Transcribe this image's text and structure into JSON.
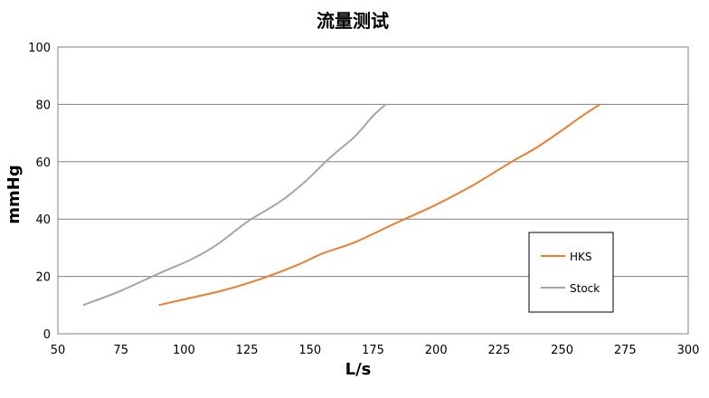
{
  "chart_data": {
    "type": "line",
    "title": "流量测试",
    "xlabel": "L/s",
    "ylabel": "mmHg",
    "xlim": [
      50,
      300
    ],
    "ylim": [
      0,
      100
    ],
    "x_ticks": [
      50,
      75,
      100,
      125,
      150,
      175,
      200,
      225,
      250,
      275,
      300
    ],
    "y_ticks": [
      0,
      20,
      40,
      60,
      80,
      100
    ],
    "grid": "horizontal",
    "legend_position": "right",
    "series": [
      {
        "name": "HKS",
        "color": "#ED7D31",
        "points": [
          [
            90,
            10
          ],
          [
            100,
            12
          ],
          [
            115,
            15
          ],
          [
            130,
            19
          ],
          [
            145,
            24
          ],
          [
            155,
            28
          ],
          [
            168,
            32
          ],
          [
            185,
            39
          ],
          [
            200,
            45
          ],
          [
            215,
            52
          ],
          [
            230,
            60
          ],
          [
            240,
            65
          ],
          [
            250,
            71
          ],
          [
            258,
            76
          ],
          [
            265,
            80
          ]
        ]
      },
      {
        "name": "Stock",
        "color": "#A5A5A5",
        "points": [
          [
            60,
            10
          ],
          [
            75,
            15
          ],
          [
            90,
            21
          ],
          [
            103,
            26
          ],
          [
            113,
            31
          ],
          [
            125,
            39
          ],
          [
            138,
            46
          ],
          [
            148,
            53
          ],
          [
            155,
            59
          ],
          [
            160,
            63
          ],
          [
            168,
            69
          ],
          [
            175,
            76
          ],
          [
            180,
            80
          ]
        ]
      }
    ]
  }
}
